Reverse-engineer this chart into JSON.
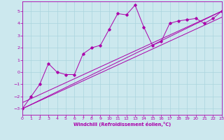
{
  "xlabel": "Windchill (Refroidissement éolien,°C)",
  "bg_color": "#cce8ee",
  "line_color": "#aa00aa",
  "grid_color": "#aad4dd",
  "xlim": [
    0,
    23
  ],
  "ylim": [
    -3.5,
    5.8
  ],
  "yticks": [
    -3,
    -2,
    -1,
    0,
    1,
    2,
    3,
    4,
    5
  ],
  "xticks": [
    0,
    1,
    2,
    3,
    4,
    5,
    6,
    7,
    8,
    9,
    10,
    11,
    12,
    13,
    14,
    15,
    16,
    17,
    18,
    19,
    20,
    21,
    22,
    23
  ],
  "line1_x": [
    0,
    1,
    2,
    3,
    4,
    5,
    6,
    7,
    8,
    9,
    10,
    11,
    12,
    13,
    14,
    15,
    16,
    17,
    18,
    19,
    20,
    21,
    22,
    23
  ],
  "line1_y": [
    -3.0,
    -2.0,
    -1.0,
    0.7,
    0.0,
    -0.2,
    -0.2,
    1.5,
    2.0,
    2.2,
    3.5,
    4.8,
    4.7,
    5.5,
    3.7,
    2.2,
    2.5,
    4.0,
    4.2,
    4.3,
    4.4,
    4.0,
    4.4,
    5.0
  ],
  "trend1_x": [
    0,
    23
  ],
  "trend1_y": [
    -3.0,
    5.0
  ],
  "trend2_x": [
    0,
    23
  ],
  "trend2_y": [
    -2.5,
    5.0
  ],
  "trend3_x": [
    0,
    23
  ],
  "trend3_y": [
    -3.0,
    4.5
  ],
  "marker": "D",
  "marker_size": 1.8,
  "lw": 0.7
}
